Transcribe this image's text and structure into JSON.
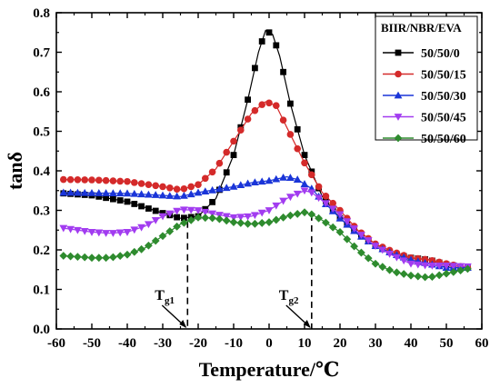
{
  "chart_data": {
    "type": "line",
    "xlabel": "Temperature/℃",
    "ylabel": "tanδ",
    "xlim": [
      -60,
      60
    ],
    "ylim": [
      0.0,
      0.8
    ],
    "xticks": [
      -60,
      -50,
      -40,
      -30,
      -20,
      -10,
      0,
      10,
      20,
      30,
      40,
      50,
      60
    ],
    "yticks": [
      0.0,
      0.1,
      0.2,
      0.3,
      0.4,
      0.5,
      0.6,
      0.7,
      0.8
    ],
    "x_tick_labels": [
      "-60",
      "-50",
      "-40",
      "-30",
      "-20",
      "-10",
      "0",
      "10",
      "20",
      "30",
      "40",
      "50",
      "60"
    ],
    "y_tick_labels": [
      "0.0",
      "0.1",
      "0.2",
      "0.3",
      "0.4",
      "0.5",
      "0.6",
      "0.7",
      "0.8"
    ],
    "grid": false,
    "legend": {
      "title": "BIIR/NBR/EVA",
      "placement": "top-right"
    },
    "series": [
      {
        "name": "50/50/0",
        "color": "#000000",
        "marker": "square",
        "points": [
          [
            -58,
            0.343
          ],
          [
            -50,
            0.338
          ],
          [
            -40,
            0.322
          ],
          [
            -30,
            0.293
          ],
          [
            -25,
            0.28
          ],
          [
            -20,
            0.285
          ],
          [
            -15,
            0.33
          ],
          [
            -10,
            0.44
          ],
          [
            -6,
            0.58
          ],
          [
            -3,
            0.7
          ],
          [
            -1,
            0.755
          ],
          [
            1,
            0.745
          ],
          [
            3,
            0.69
          ],
          [
            6,
            0.57
          ],
          [
            10,
            0.44
          ],
          [
            15,
            0.335
          ],
          [
            20,
            0.28
          ],
          [
            25,
            0.24
          ],
          [
            30,
            0.21
          ],
          [
            35,
            0.19
          ],
          [
            40,
            0.18
          ],
          [
            45,
            0.175
          ],
          [
            50,
            0.163
          ],
          [
            56,
            0.155
          ]
        ]
      },
      {
        "name": "50/50/15",
        "color": "#d42a2a",
        "marker": "circle",
        "points": [
          [
            -58,
            0.378
          ],
          [
            -50,
            0.377
          ],
          [
            -40,
            0.373
          ],
          [
            -30,
            0.36
          ],
          [
            -25,
            0.352
          ],
          [
            -20,
            0.365
          ],
          [
            -15,
            0.405
          ],
          [
            -10,
            0.475
          ],
          [
            -5,
            0.545
          ],
          [
            -1,
            0.575
          ],
          [
            2,
            0.565
          ],
          [
            5,
            0.51
          ],
          [
            10,
            0.42
          ],
          [
            15,
            0.345
          ],
          [
            20,
            0.3
          ],
          [
            25,
            0.25
          ],
          [
            30,
            0.215
          ],
          [
            35,
            0.195
          ],
          [
            40,
            0.18
          ],
          [
            45,
            0.175
          ],
          [
            50,
            0.165
          ],
          [
            56,
            0.155
          ]
        ]
      },
      {
        "name": "50/50/30",
        "color": "#1a35d8",
        "marker": "triangle-up",
        "points": [
          [
            -58,
            0.345
          ],
          [
            -50,
            0.344
          ],
          [
            -40,
            0.343
          ],
          [
            -30,
            0.338
          ],
          [
            -25,
            0.335
          ],
          [
            -20,
            0.345
          ],
          [
            -10,
            0.36
          ],
          [
            -5,
            0.37
          ],
          [
            0,
            0.375
          ],
          [
            5,
            0.385
          ],
          [
            8,
            0.378
          ],
          [
            12,
            0.355
          ],
          [
            15,
            0.325
          ],
          [
            20,
            0.28
          ],
          [
            25,
            0.24
          ],
          [
            30,
            0.21
          ],
          [
            35,
            0.19
          ],
          [
            40,
            0.175
          ],
          [
            45,
            0.165
          ],
          [
            50,
            0.155
          ],
          [
            56,
            0.155
          ]
        ]
      },
      {
        "name": "50/50/45",
        "color": "#a23cf0",
        "marker": "triangle-down",
        "points": [
          [
            -58,
            0.255
          ],
          [
            -50,
            0.245
          ],
          [
            -45,
            0.242
          ],
          [
            -40,
            0.245
          ],
          [
            -35,
            0.26
          ],
          [
            -30,
            0.285
          ],
          [
            -25,
            0.302
          ],
          [
            -20,
            0.3
          ],
          [
            -15,
            0.29
          ],
          [
            -10,
            0.282
          ],
          [
            -5,
            0.285
          ],
          [
            0,
            0.3
          ],
          [
            5,
            0.33
          ],
          [
            10,
            0.35
          ],
          [
            12,
            0.345
          ],
          [
            15,
            0.325
          ],
          [
            20,
            0.29
          ],
          [
            25,
            0.245
          ],
          [
            30,
            0.21
          ],
          [
            35,
            0.185
          ],
          [
            40,
            0.165
          ],
          [
            45,
            0.16
          ],
          [
            50,
            0.16
          ],
          [
            56,
            0.158
          ]
        ]
      },
      {
        "name": "50/50/60",
        "color": "#2e8b2e",
        "marker": "diamond",
        "points": [
          [
            -58,
            0.185
          ],
          [
            -50,
            0.18
          ],
          [
            -45,
            0.18
          ],
          [
            -40,
            0.188
          ],
          [
            -35,
            0.205
          ],
          [
            -30,
            0.235
          ],
          [
            -25,
            0.265
          ],
          [
            -20,
            0.282
          ],
          [
            -15,
            0.28
          ],
          [
            -10,
            0.27
          ],
          [
            -5,
            0.265
          ],
          [
            0,
            0.27
          ],
          [
            5,
            0.285
          ],
          [
            10,
            0.295
          ],
          [
            12,
            0.29
          ],
          [
            15,
            0.275
          ],
          [
            20,
            0.245
          ],
          [
            25,
            0.2
          ],
          [
            30,
            0.165
          ],
          [
            35,
            0.145
          ],
          [
            40,
            0.135
          ],
          [
            45,
            0.13
          ],
          [
            50,
            0.14
          ],
          [
            56,
            0.152
          ]
        ]
      }
    ],
    "annotations": {
      "tg1": {
        "label_main": "T",
        "label_sub": "g1",
        "x": -23
      },
      "tg2": {
        "label_main": "T",
        "label_sub": "g2",
        "x": 12
      }
    }
  }
}
